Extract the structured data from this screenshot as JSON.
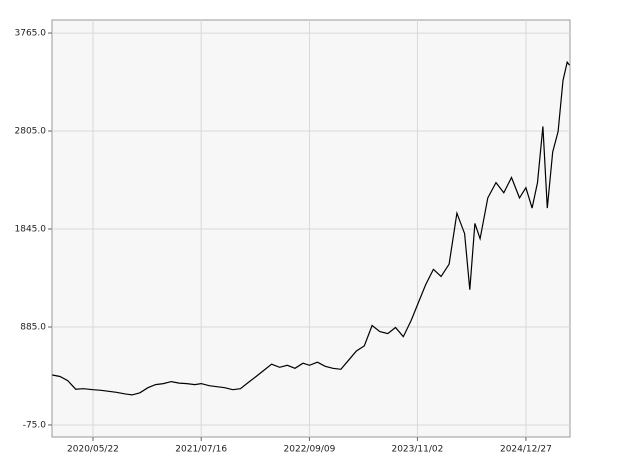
{
  "chart_data": {
    "type": "line",
    "x": [
      "2019/12/16",
      "2020/01/15",
      "2020/02/14",
      "2020/03/16",
      "2020/04/15",
      "2020/05/22",
      "2020/06/22",
      "2020/07/22",
      "2020/08/21",
      "2020/09/21",
      "2020/10/21",
      "2020/11/20",
      "2020/12/21",
      "2021/01/20",
      "2021/02/19",
      "2021/03/22",
      "2021/04/21",
      "2021/05/21",
      "2021/06/21",
      "2021/07/16",
      "2021/08/16",
      "2021/09/15",
      "2021/10/15",
      "2021/11/15",
      "2021/12/15",
      "2022/01/14",
      "2022/02/14",
      "2022/03/16",
      "2022/04/15",
      "2022/05/16",
      "2022/06/15",
      "2022/07/15",
      "2022/08/15",
      "2022/09/09",
      "2022/10/10",
      "2022/11/09",
      "2022/12/09",
      "2023/01/09",
      "2023/02/08",
      "2023/03/10",
      "2023/04/10",
      "2023/05/10",
      "2023/06/09",
      "2023/07/10",
      "2023/08/09",
      "2023/09/08",
      "2023/10/09",
      "2023/11/02",
      "2023/12/04",
      "2024/01/03",
      "2024/02/02",
      "2024/03/04",
      "2024/04/03",
      "2024/05/03",
      "2024/05/23",
      "2024/06/12",
      "2024/07/02",
      "2024/08/01",
      "2024/09/02",
      "2024/10/02",
      "2024/11/01",
      "2024/12/02",
      "2024/12/27",
      "2025/01/20",
      "2025/02/10",
      "2025/03/03",
      "2025/03/20",
      "2025/04/10",
      "2025/05/01",
      "2025/05/20",
      "2025/06/05",
      "2025/06/14"
    ],
    "series": [
      {
        "color": "#000000",
        "values": [
          415,
          400,
          360,
          275,
          280,
          270,
          265,
          255,
          245,
          230,
          220,
          240,
          290,
          320,
          330,
          350,
          335,
          330,
          320,
          330,
          310,
          300,
          290,
          270,
          280,
          340,
          400,
          460,
          520,
          490,
          510,
          480,
          530,
          510,
          540,
          500,
          480,
          470,
          560,
          650,
          700,
          900,
          840,
          820,
          880,
          790,
          950,
          1100,
          1300,
          1450,
          1380,
          1500,
          2000,
          1800,
          1250,
          1900,
          1750,
          2150,
          2300,
          2200,
          2350,
          2150,
          2250,
          2050,
          2300,
          2850,
          2050,
          2600,
          2800,
          3300,
          3480,
          3450
        ]
      }
    ],
    "xlim": [
      "2019/12/15",
      "2025/06/16"
    ],
    "xticks": [
      "2020/05/22",
      "2021/07/16",
      "2022/09/09",
      "2023/11/02",
      "2024/12/27"
    ],
    "ylim": [
      -193,
      3893
    ],
    "yticks": [
      {
        "value": -75,
        "label": "-75.0"
      },
      {
        "value": 885,
        "label": "885.0"
      },
      {
        "value": 1845,
        "label": "1845.0"
      },
      {
        "value": 2805,
        "label": "2805.0"
      },
      {
        "value": 3765,
        "label": "3765.0"
      }
    ],
    "grid": true
  }
}
